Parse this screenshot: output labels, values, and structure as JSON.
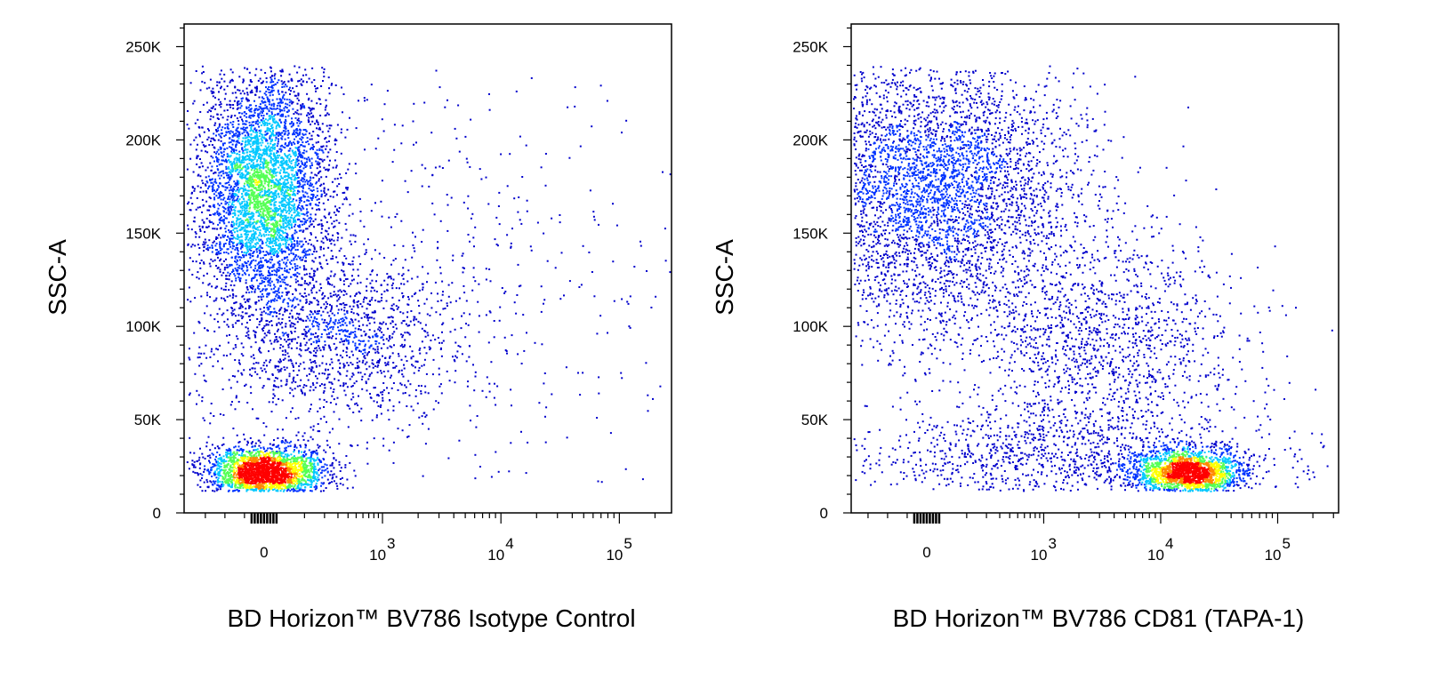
{
  "chart_data": [
    {
      "type": "scatter",
      "subtype": "flow-cytometry-density-dot-plot",
      "xlabel": "BD Horizon™ BV786 Isotype Control",
      "ylabel": "SSC-A",
      "x_scale": "biexponential",
      "xlim": [
        -300,
        150000
      ],
      "ylim": [
        0,
        262144
      ],
      "x_ticks": [
        {
          "value": 0,
          "base": "0",
          "exp": ""
        },
        {
          "value": 1000,
          "base": "10",
          "exp": "3"
        },
        {
          "value": 10000,
          "base": "10",
          "exp": "4"
        },
        {
          "value": 100000,
          "base": "10",
          "exp": "5"
        }
      ],
      "y_ticks": [
        {
          "value": 0,
          "label": "0"
        },
        {
          "value": 50000,
          "label": "50K"
        },
        {
          "value": 100000,
          "label": "100K"
        },
        {
          "value": 150000,
          "label": "150K"
        },
        {
          "value": 200000,
          "label": "200K"
        },
        {
          "value": 250000,
          "label": "250K"
        }
      ],
      "color_scale": [
        "#0000cc",
        "#0033ff",
        "#00c8ff",
        "#55ff55",
        "#ffff00",
        "#ff8800",
        "#ff0000"
      ],
      "populations": [
        {
          "x_center": 0,
          "y_center": 175000,
          "x_spread": 0.55,
          "y_spread": 33000,
          "relative_size": 0.48
        },
        {
          "x_center": 0,
          "y_center": 22000,
          "x_spread": 0.5,
          "y_spread": 7000,
          "relative_size": 0.28
        },
        {
          "x_center": 300,
          "y_center": 95000,
          "x_spread": 1.0,
          "y_spread": 22000,
          "relative_size": 0.14
        },
        {
          "x_center": 800,
          "y_center": 120000,
          "x_spread": 3.0,
          "y_spread": 70000,
          "relative_size": 0.1
        }
      ]
    },
    {
      "type": "scatter",
      "subtype": "flow-cytometry-density-dot-plot",
      "xlabel": "BD Horizon™ BV786 CD81 (TAPA-1)",
      "ylabel": "SSC-A",
      "x_scale": "biexponential",
      "xlim": [
        -300,
        250000
      ],
      "ylim": [
        0,
        262144
      ],
      "x_ticks": [
        {
          "value": 0,
          "base": "0",
          "exp": ""
        },
        {
          "value": 1000,
          "base": "10",
          "exp": "3"
        },
        {
          "value": 10000,
          "base": "10",
          "exp": "4"
        },
        {
          "value": 100000,
          "base": "10",
          "exp": "5"
        }
      ],
      "y_ticks": [
        {
          "value": 0,
          "label": "0"
        },
        {
          "value": 50000,
          "label": "50K"
        },
        {
          "value": 100000,
          "label": "100K"
        },
        {
          "value": 150000,
          "label": "150K"
        },
        {
          "value": 200000,
          "label": "200K"
        },
        {
          "value": 250000,
          "label": "250K"
        }
      ],
      "color_scale": [
        "#0000cc",
        "#0033ff",
        "#00c8ff",
        "#55ff55",
        "#ffff00",
        "#ff8800",
        "#ff0000"
      ],
      "populations": [
        {
          "x_center": 0,
          "y_center": 175000,
          "x_spread": 1.3,
          "y_spread": 38000,
          "relative_size": 0.5
        },
        {
          "x_center": 17000,
          "y_center": 22000,
          "x_spread": 0.45,
          "y_spread": 6500,
          "relative_size": 0.22
        },
        {
          "x_center": 3000,
          "y_center": 90000,
          "x_spread": 1.2,
          "y_spread": 30000,
          "relative_size": 0.16
        },
        {
          "x_center": 1500,
          "y_center": 30000,
          "x_spread": 1.8,
          "y_spread": 12000,
          "relative_size": 0.12
        }
      ]
    }
  ]
}
